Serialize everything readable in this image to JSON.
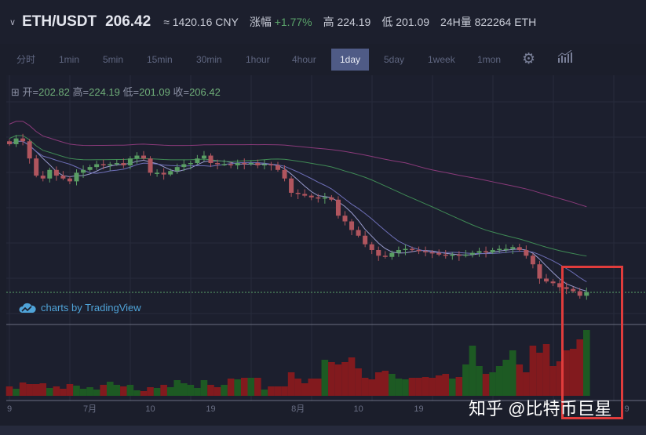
{
  "header": {
    "pair": "ETH/USDT",
    "price": "206.42",
    "cny": "≈ 1420.16 CNY",
    "change_label": "涨幅",
    "change": "+1.77%",
    "high": "高 224.19",
    "low": "低 201.09",
    "volume": "24H量 822264 ETH"
  },
  "toolbar": {
    "timeframes": [
      "分时",
      "1min",
      "5min",
      "15min",
      "30min",
      "1hour",
      "4hour",
      "1day",
      "5day",
      "1week",
      "1mon"
    ],
    "active": "1day",
    "icons": [
      "gear-icon",
      "indicators-icon"
    ]
  },
  "ohlc": {
    "open_label": "开=",
    "open": "202.82",
    "high_label": "高=",
    "high": "224.19",
    "low_label": "低=",
    "low": "201.09",
    "close_label": "收=",
    "close": "206.42"
  },
  "branding": "charts by TradingView",
  "watermark": "知乎 @比特币巨星",
  "x_axis": [
    {
      "label": "9",
      "i": 0
    },
    {
      "label": "7月",
      "i": 12
    },
    {
      "label": "10",
      "i": 21
    },
    {
      "label": "19",
      "i": 30
    },
    {
      "label": "8月",
      "i": 43
    },
    {
      "label": "10",
      "i": 52
    },
    {
      "label": "19",
      "i": 61
    },
    {
      "label": "9",
      "i": 92
    }
  ],
  "colors": {
    "up": "#5a9e64",
    "down": "#b0555e",
    "vol_up": "#1d5a23",
    "vol_down": "#821a1e",
    "bg": "#1b1e2b",
    "highlight": "#e03c3c"
  },
  "chart_data": {
    "type": "candlestick",
    "last_price": 206.42,
    "closes": [
      465,
      475,
      470,
      440,
      410,
      405,
      420,
      410,
      405,
      400,
      415,
      420,
      425,
      430,
      428,
      430,
      432,
      428,
      440,
      445,
      440,
      415,
      415,
      412,
      418,
      425,
      430,
      432,
      440,
      445,
      432,
      430,
      430,
      428,
      432,
      430,
      432,
      428,
      430,
      428,
      420,
      405,
      380,
      378,
      375,
      372,
      370,
      372,
      368,
      340,
      330,
      315,
      305,
      290,
      280,
      270,
      268,
      275,
      280,
      282,
      280,
      278,
      276,
      275,
      272,
      270,
      272,
      270,
      272,
      275,
      278,
      276,
      280,
      282,
      282,
      285,
      280,
      270,
      255,
      230,
      225,
      222,
      215,
      212,
      208,
      200,
      206.42
    ],
    "volumes": [
      12,
      9,
      17,
      15,
      15,
      16,
      10,
      12,
      9,
      15,
      13,
      9,
      11,
      8,
      14,
      18,
      14,
      12,
      14,
      7,
      6,
      11,
      10,
      14,
      11,
      20,
      16,
      14,
      10,
      20,
      14,
      11,
      14,
      22,
      21,
      23,
      23,
      23,
      8,
      12,
      12,
      12,
      30,
      22,
      16,
      22,
      22,
      46,
      43,
      40,
      43,
      49,
      35,
      23,
      21,
      30,
      32,
      28,
      22,
      21,
      23,
      23,
      24,
      23,
      26,
      28,
      22,
      24,
      40,
      64,
      38,
      28,
      30,
      38,
      46,
      58,
      40,
      30,
      64,
      55,
      66,
      38,
      44,
      58,
      60,
      72,
      84
    ]
  }
}
